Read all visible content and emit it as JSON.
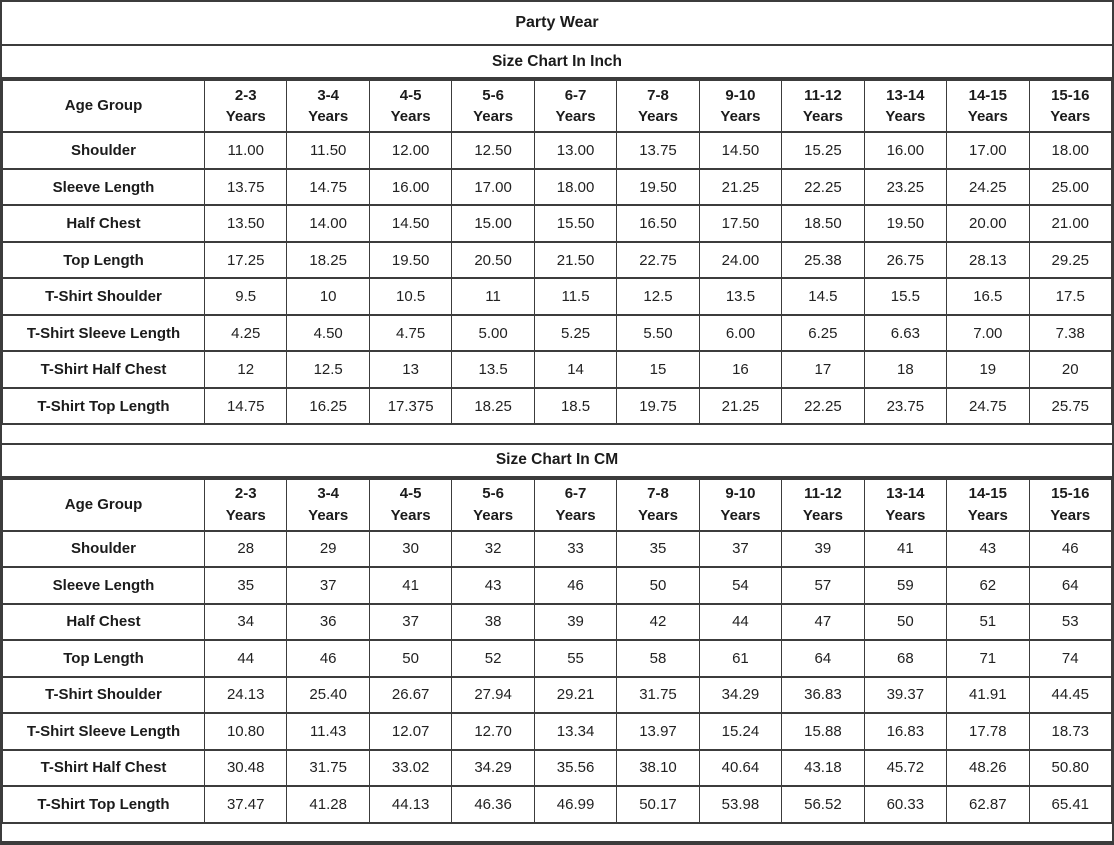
{
  "title": "Party Wear",
  "colors": {
    "background": "#ffffff",
    "border": "#3c3c3c",
    "text": "#1b1b1b"
  },
  "chart_data": [
    {
      "type": "table",
      "title": "Size Chart In Inch",
      "unit": "inch",
      "header": {
        "label_column": "Age Group",
        "age_ranges": [
          "2-3",
          "3-4",
          "4-5",
          "5-6",
          "6-7",
          "7-8",
          "9-10",
          "11-12",
          "13-14",
          "14-15",
          "15-16"
        ],
        "age_suffix": "Years"
      },
      "rows": [
        {
          "label": "Shoulder",
          "values": [
            "11.00",
            "11.50",
            "12.00",
            "12.50",
            "13.00",
            "13.75",
            "14.50",
            "15.25",
            "16.00",
            "17.00",
            "18.00"
          ]
        },
        {
          "label": "Sleeve Length",
          "values": [
            "13.75",
            "14.75",
            "16.00",
            "17.00",
            "18.00",
            "19.50",
            "21.25",
            "22.25",
            "23.25",
            "24.25",
            "25.00"
          ]
        },
        {
          "label": "Half Chest",
          "values": [
            "13.50",
            "14.00",
            "14.50",
            "15.00",
            "15.50",
            "16.50",
            "17.50",
            "18.50",
            "19.50",
            "20.00",
            "21.00"
          ]
        },
        {
          "label": "Top Length",
          "values": [
            "17.25",
            "18.25",
            "19.50",
            "20.50",
            "21.50",
            "22.75",
            "24.00",
            "25.38",
            "26.75",
            "28.13",
            "29.25"
          ]
        },
        {
          "label": "T-Shirt Shoulder",
          "values": [
            "9.5",
            "10",
            "10.5",
            "11",
            "11.5",
            "12.5",
            "13.5",
            "14.5",
            "15.5",
            "16.5",
            "17.5"
          ]
        },
        {
          "label": "T-Shirt Sleeve Length",
          "values": [
            "4.25",
            "4.50",
            "4.75",
            "5.00",
            "5.25",
            "5.50",
            "6.00",
            "6.25",
            "6.63",
            "7.00",
            "7.38"
          ]
        },
        {
          "label": "T-Shirt Half Chest",
          "values": [
            "12",
            "12.5",
            "13",
            "13.5",
            "14",
            "15",
            "16",
            "17",
            "18",
            "19",
            "20"
          ]
        },
        {
          "label": "T-Shirt Top Length",
          "values": [
            "14.75",
            "16.25",
            "17.375",
            "18.25",
            "18.5",
            "19.75",
            "21.25",
            "22.25",
            "23.75",
            "24.75",
            "25.75"
          ]
        }
      ]
    },
    {
      "type": "table",
      "title": "Size Chart In CM",
      "unit": "cm",
      "header": {
        "label_column": "Age Group",
        "age_ranges": [
          "2-3",
          "3-4",
          "4-5",
          "5-6",
          "6-7",
          "7-8",
          "9-10",
          "11-12",
          "13-14",
          "14-15",
          "15-16"
        ],
        "age_suffix": "Years"
      },
      "rows": [
        {
          "label": "Shoulder",
          "values": [
            "28",
            "29",
            "30",
            "32",
            "33",
            "35",
            "37",
            "39",
            "41",
            "43",
            "46"
          ]
        },
        {
          "label": "Sleeve Length",
          "values": [
            "35",
            "37",
            "41",
            "43",
            "46",
            "50",
            "54",
            "57",
            "59",
            "62",
            "64"
          ]
        },
        {
          "label": "Half Chest",
          "values": [
            "34",
            "36",
            "37",
            "38",
            "39",
            "42",
            "44",
            "47",
            "50",
            "51",
            "53"
          ]
        },
        {
          "label": "Top Length",
          "values": [
            "44",
            "46",
            "50",
            "52",
            "55",
            "58",
            "61",
            "64",
            "68",
            "71",
            "74"
          ]
        },
        {
          "label": "T-Shirt Shoulder",
          "values": [
            "24.13",
            "25.40",
            "26.67",
            "27.94",
            "29.21",
            "31.75",
            "34.29",
            "36.83",
            "39.37",
            "41.91",
            "44.45"
          ]
        },
        {
          "label": "T-Shirt Sleeve Length",
          "values": [
            "10.80",
            "11.43",
            "12.07",
            "12.70",
            "13.34",
            "13.97",
            "15.24",
            "15.88",
            "16.83",
            "17.78",
            "18.73"
          ]
        },
        {
          "label": "T-Shirt Half Chest",
          "values": [
            "30.48",
            "31.75",
            "33.02",
            "34.29",
            "35.56",
            "38.10",
            "40.64",
            "43.18",
            "45.72",
            "48.26",
            "50.80"
          ]
        },
        {
          "label": "T-Shirt Top Length",
          "values": [
            "37.47",
            "41.28",
            "44.13",
            "46.36",
            "46.99",
            "50.17",
            "53.98",
            "56.52",
            "60.33",
            "62.87",
            "65.41"
          ]
        }
      ]
    }
  ]
}
